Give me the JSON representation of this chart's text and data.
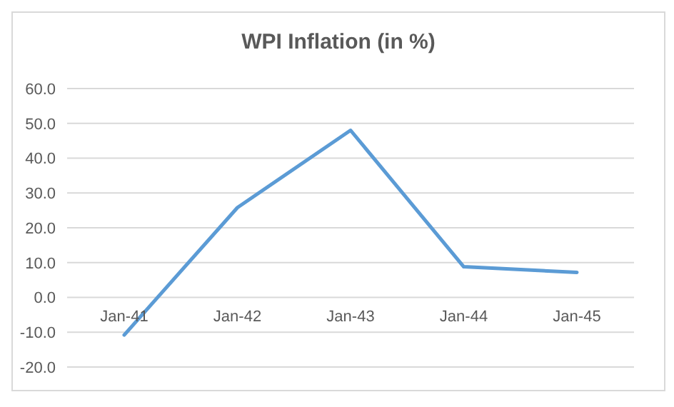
{
  "chart_data": {
    "type": "line",
    "title": "WPI Inflation (in %)",
    "categories": [
      "Jan-41",
      "Jan-42",
      "Jan-43",
      "Jan-44",
      "Jan-45"
    ],
    "series": [
      {
        "color": "#5b9bd5",
        "values": [
          -10.8,
          25.8,
          48.0,
          8.8,
          7.2
        ]
      }
    ],
    "ylim": [
      -20,
      60
    ],
    "yticks": [
      {
        "value": -20,
        "label": "-20.0"
      },
      {
        "value": -10,
        "label": "-10.0"
      },
      {
        "value": 0,
        "label": "0.0"
      },
      {
        "value": 10,
        "label": "10.0"
      },
      {
        "value": 20,
        "label": "20.0"
      },
      {
        "value": 30,
        "label": "30.0"
      },
      {
        "value": 40,
        "label": "40.0"
      },
      {
        "value": 50,
        "label": "50.0"
      },
      {
        "value": 60,
        "label": "60.0"
      }
    ],
    "grid": "y",
    "legend": false,
    "marker": "none",
    "line_style": "solid"
  }
}
